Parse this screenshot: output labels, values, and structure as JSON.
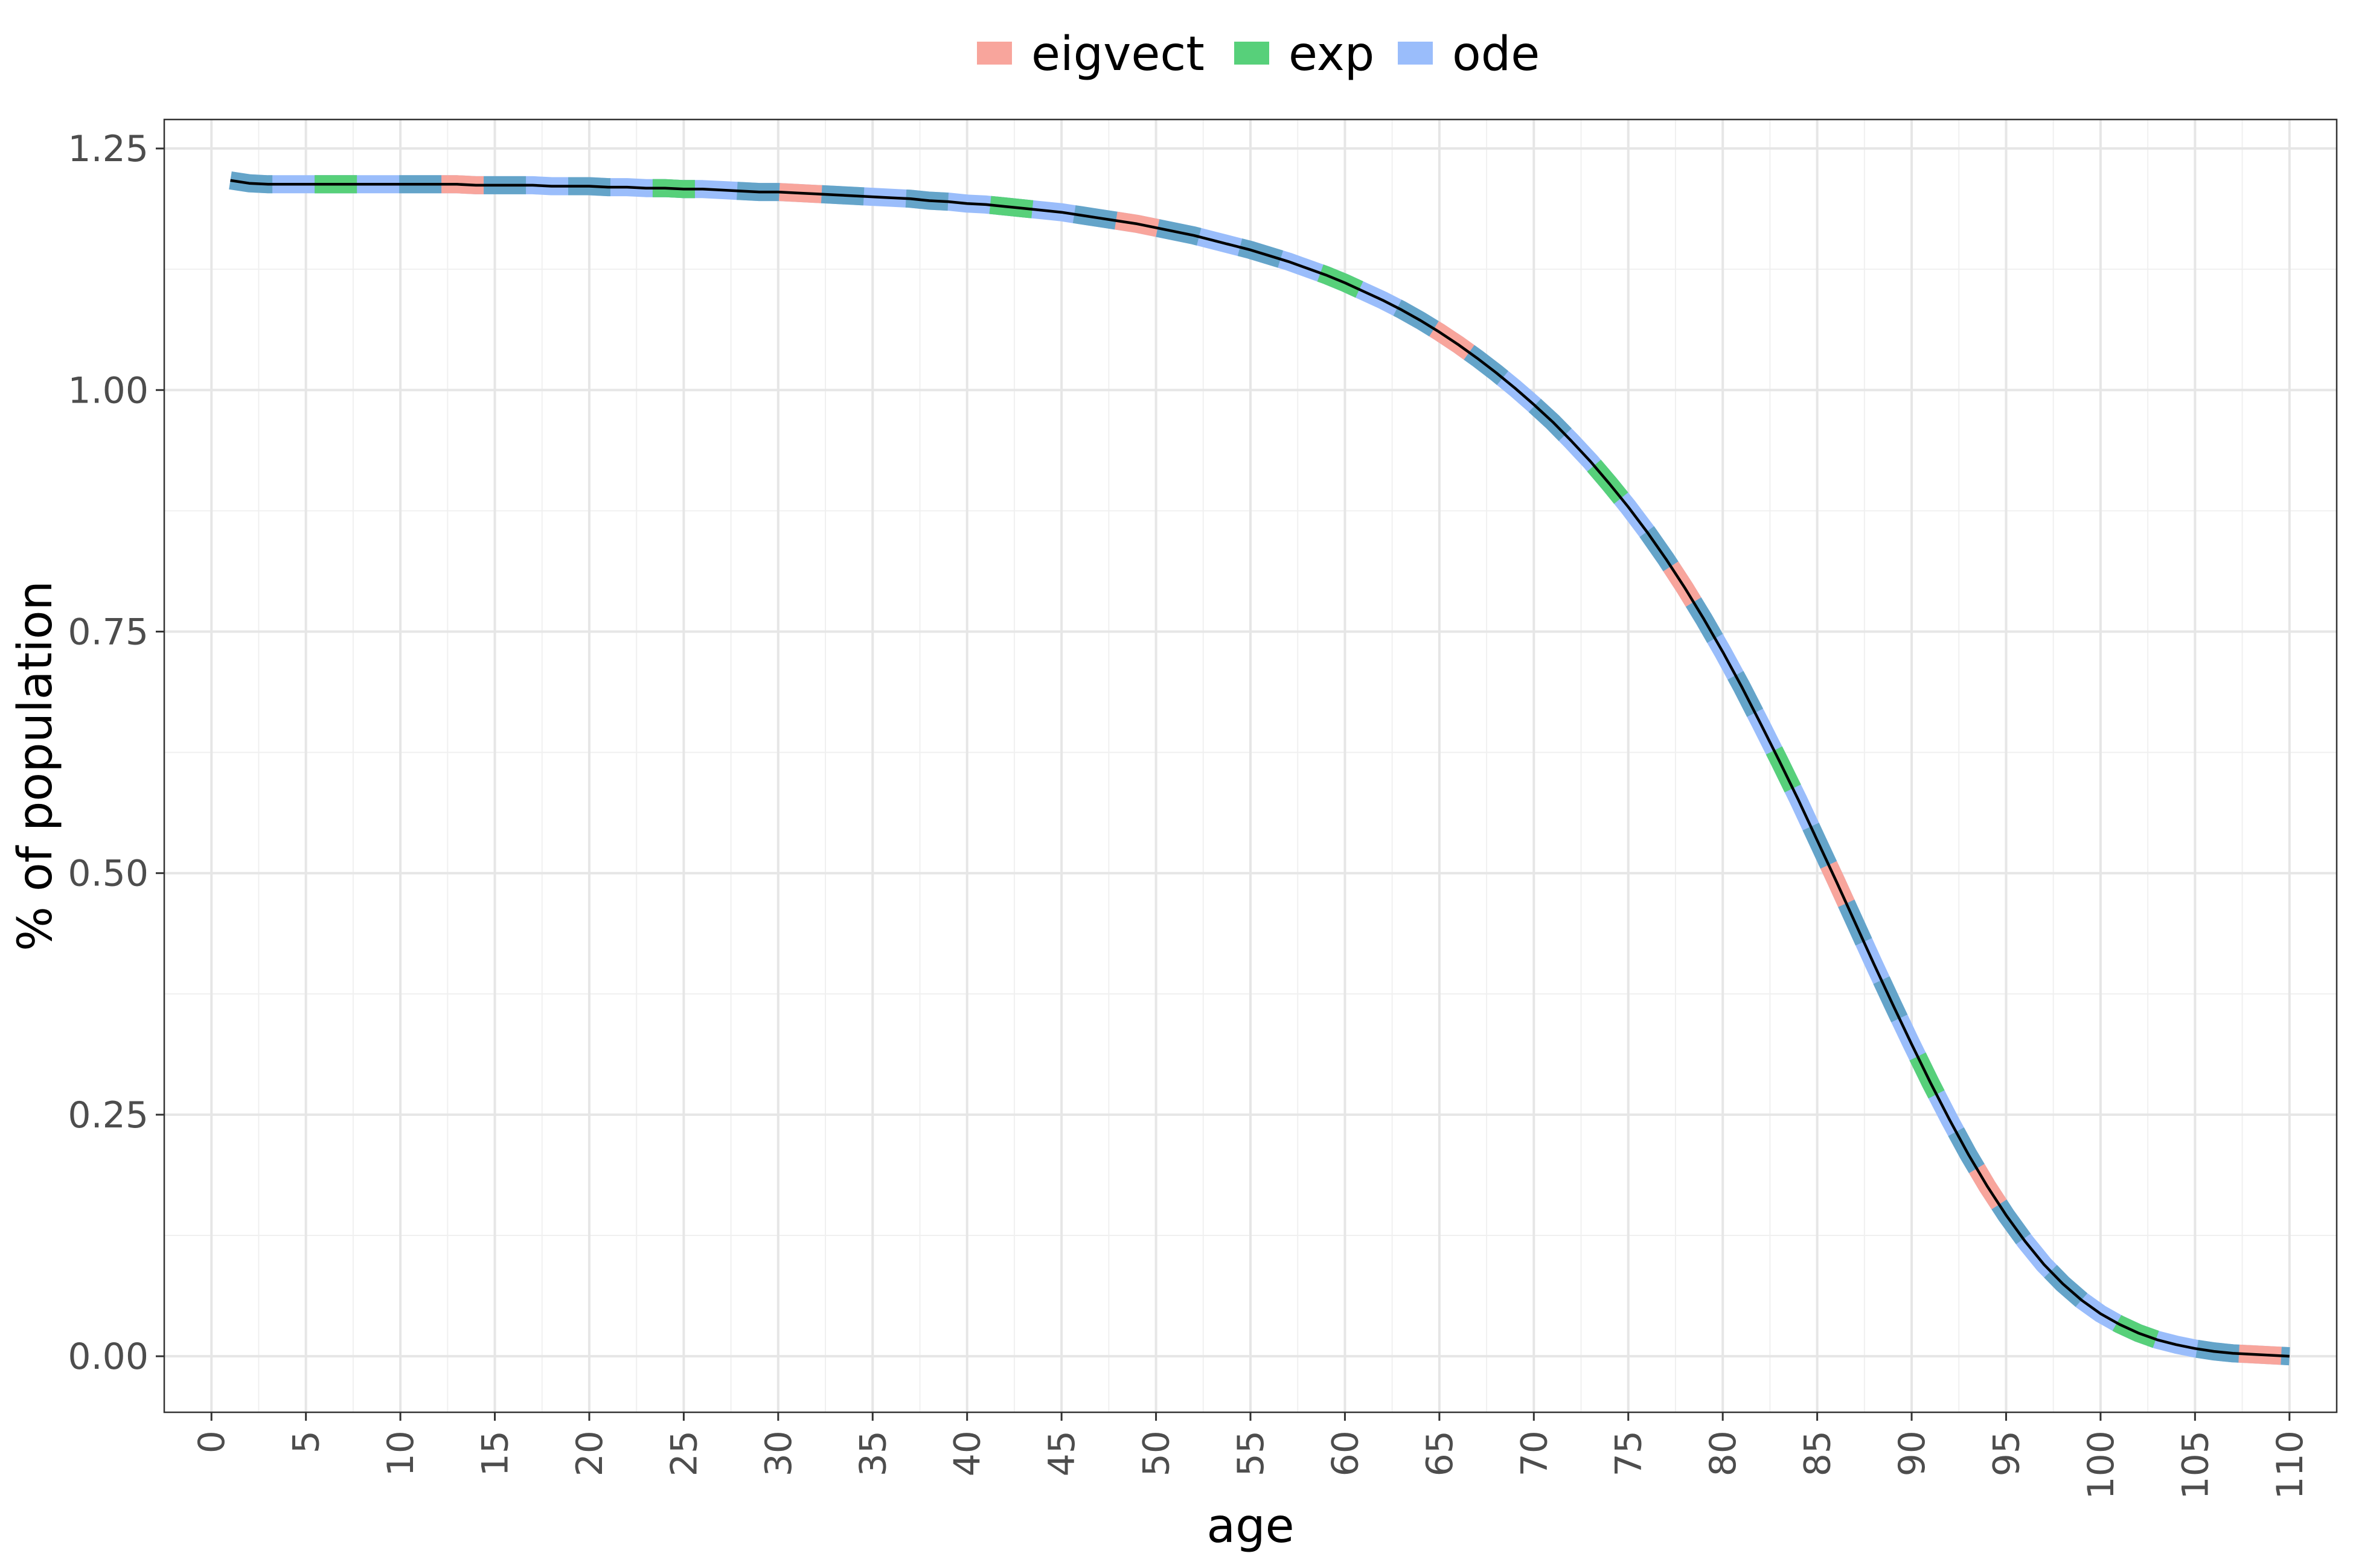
{
  "chart_data": {
    "type": "line",
    "xlabel": "age",
    "ylabel": "% of population",
    "xlim": [
      -2.5,
      112.5
    ],
    "ylim": [
      -0.058,
      1.28
    ],
    "x_ticks": [
      0,
      5,
      10,
      15,
      20,
      25,
      30,
      35,
      40,
      45,
      50,
      55,
      60,
      65,
      70,
      75,
      80,
      85,
      90,
      95,
      100,
      105,
      110
    ],
    "x_tick_labels": [
      "0",
      "5",
      "10",
      "15",
      "20",
      "25",
      "30",
      "35",
      "40",
      "45",
      "50",
      "55",
      "60",
      "65",
      "70",
      "75",
      "80",
      "85",
      "90",
      "95",
      "100",
      "105",
      "110"
    ],
    "y_ticks": [
      0,
      0.25,
      0.5,
      0.75,
      1.0,
      1.25
    ],
    "y_tick_labels": [
      "0.00",
      "0.25",
      "0.50",
      "0.75",
      "1.00",
      "1.25"
    ],
    "grid": true,
    "legend_position": "top",
    "series": [
      {
        "name": "eigvect",
        "color": "#F8A59C"
      },
      {
        "name": "exp",
        "color": "#57D07A"
      },
      {
        "name": "ode",
        "color": "#9ABDFB"
      }
    ],
    "x": [
      1,
      2,
      3,
      4,
      5,
      6,
      7,
      8,
      9,
      10,
      11,
      12,
      13,
      14,
      15,
      16,
      17,
      18,
      19,
      20,
      21,
      22,
      23,
      24,
      25,
      26,
      27,
      28,
      29,
      30,
      31,
      32,
      33,
      34,
      35,
      36,
      37,
      38,
      39,
      40,
      41,
      42,
      43,
      44,
      45,
      46,
      47,
      48,
      49,
      50,
      51,
      52,
      53,
      54,
      55,
      56,
      57,
      58,
      59,
      60,
      61,
      62,
      63,
      64,
      65,
      66,
      67,
      68,
      69,
      70,
      71,
      72,
      73,
      74,
      75,
      76,
      77,
      78,
      79,
      80,
      81,
      82,
      83,
      84,
      85,
      86,
      87,
      88,
      89,
      90,
      91,
      92,
      93,
      94,
      95,
      96,
      97,
      98,
      99,
      100,
      101,
      102,
      103,
      104,
      105,
      106,
      107,
      108,
      109,
      110
    ],
    "y": [
      1.217,
      1.214,
      1.213,
      1.213,
      1.213,
      1.213,
      1.213,
      1.213,
      1.213,
      1.213,
      1.213,
      1.213,
      1.213,
      1.212,
      1.212,
      1.212,
      1.212,
      1.211,
      1.211,
      1.211,
      1.21,
      1.21,
      1.209,
      1.209,
      1.208,
      1.208,
      1.207,
      1.206,
      1.205,
      1.205,
      1.204,
      1.203,
      1.202,
      1.201,
      1.2,
      1.199,
      1.198,
      1.196,
      1.195,
      1.193,
      1.192,
      1.19,
      1.188,
      1.186,
      1.184,
      1.181,
      1.178,
      1.175,
      1.172,
      1.168,
      1.164,
      1.16,
      1.155,
      1.15,
      1.145,
      1.139,
      1.133,
      1.126,
      1.119,
      1.111,
      1.102,
      1.093,
      1.083,
      1.072,
      1.06,
      1.047,
      1.033,
      1.018,
      1.002,
      0.985,
      0.967,
      0.947,
      0.926,
      0.903,
      0.879,
      0.853,
      0.825,
      0.795,
      0.763,
      0.729,
      0.693,
      0.655,
      0.616,
      0.576,
      0.534,
      0.492,
      0.449,
      0.406,
      0.364,
      0.323,
      0.283,
      0.245,
      0.209,
      0.176,
      0.146,
      0.119,
      0.095,
      0.075,
      0.058,
      0.044,
      0.033,
      0.024,
      0.017,
      0.012,
      0.008,
      0.005,
      0.003,
      0.002,
      0.001,
      0.0
    ]
  }
}
